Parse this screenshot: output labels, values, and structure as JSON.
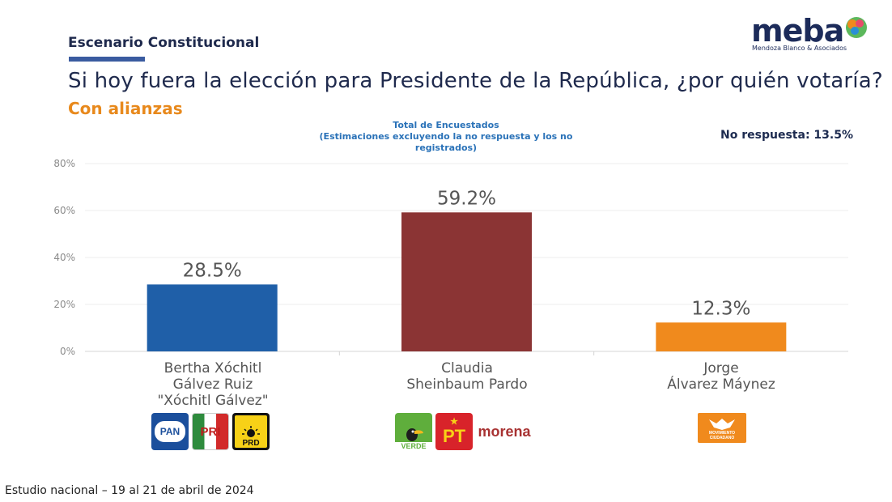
{
  "header": {
    "section_label": "Escenario Constitucional",
    "question": "Si hoy fuera la elección para Presidente de la República, ¿por quién votaría?",
    "subtitle": "Con alianzas",
    "no_response": "No respuesta: 13.5%"
  },
  "logo": {
    "wordmark": "meba",
    "tagline": "Mendoza Blanco & Asociados"
  },
  "footer": "Estudio nacional – 19 al 21 de abril de 2024",
  "parties": {
    "pan": "PAN",
    "pri": "PRI",
    "prd": "PRD",
    "verde": "VERDE",
    "pt": "PT",
    "morena": "morena",
    "mc": "MOVIMIENTO CIUDADANO"
  },
  "colors": {
    "accent_blue": "#1f5fa8",
    "accent_red": "#8b3434",
    "accent_orange": "#f08a1d",
    "subtitle_orange": "#e8891c",
    "title_navy": "#1f2a4d"
  },
  "chart_data": {
    "type": "bar",
    "title": "Total de Encuestados",
    "subtitle": "(Estimaciones excluyendo la no respuesta y los no registrados)",
    "categories": [
      "Bertha Xóchitl Gálvez Ruiz \"Xóchitl Gálvez\"",
      "Claudia Sheinbaum Pardo",
      "Jorge Álvarez Máynez"
    ],
    "category_lines": [
      [
        "Bertha Xóchitl",
        "Gálvez Ruiz",
        "\"Xóchitl Gálvez\""
      ],
      [
        "Claudia",
        "Sheinbaum Pardo"
      ],
      [
        "Jorge",
        "Álvarez Máynez"
      ]
    ],
    "values": [
      28.5,
      59.2,
      12.3
    ],
    "value_labels": [
      "28.5%",
      "59.2%",
      "12.3%"
    ],
    "bar_colors": [
      "#1f5fa8",
      "#8b3434",
      "#f08a1d"
    ],
    "yticks": [
      0,
      20,
      40,
      60,
      80
    ],
    "ytick_labels": [
      "0%",
      "20%",
      "40%",
      "60%",
      "80%"
    ],
    "ylim": [
      0,
      80
    ],
    "xlabel": "",
    "ylabel": "",
    "grid": true
  }
}
